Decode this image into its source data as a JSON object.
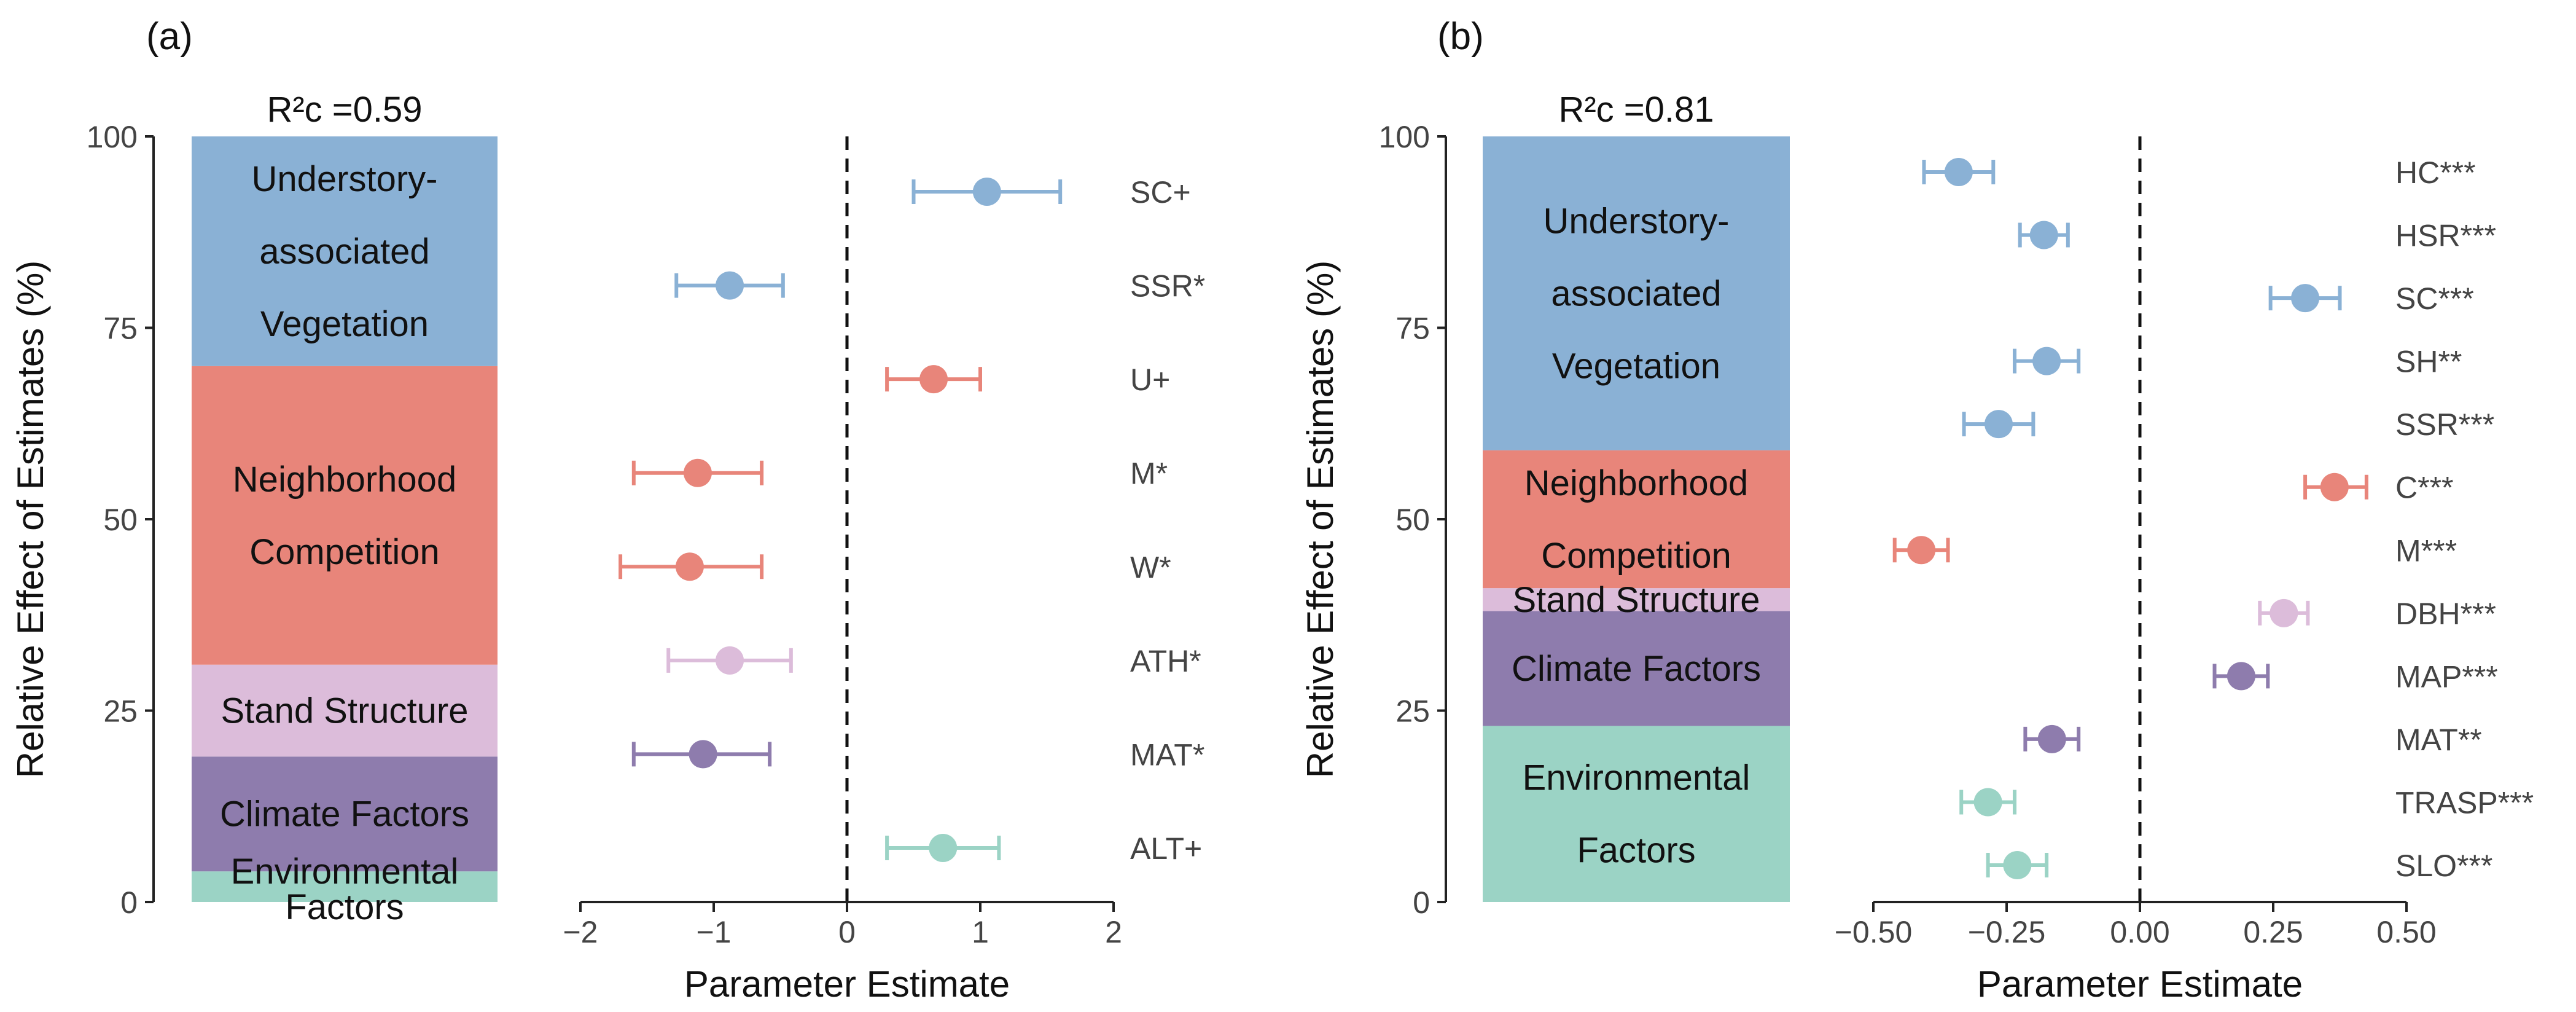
{
  "chart_data": [
    {
      "type": "stacked-bar + forest",
      "panel_label": "(a)",
      "r2_label": "R²c =0.59",
      "bar": {
        "ylabel": "Relative Effect of Estimates (%)",
        "ylim": [
          0,
          100
        ],
        "yticks": [
          "0",
          "25",
          "50",
          "75",
          "100"
        ],
        "segments": [
          {
            "name": "Environmental Factors",
            "lines": [
              "Environmental",
              "Factors"
            ],
            "start": 0,
            "end": 4,
            "color": "#9bd3c5"
          },
          {
            "name": "Climate Factors",
            "lines": [
              "Climate Factors"
            ],
            "start": 4,
            "end": 19,
            "color": "#8e7cad"
          },
          {
            "name": "Stand Structure",
            "lines": [
              "Stand Structure"
            ],
            "start": 19,
            "end": 31,
            "color": "#dcbcda"
          },
          {
            "name": "Neighborhood Competition",
            "lines": [
              "Neighborhood",
              "Competition"
            ],
            "start": 31,
            "end": 70,
            "color": "#e8857a"
          },
          {
            "name": "Understory-associated Vegetation",
            "lines": [
              "Understory-",
              "associated",
              "Vegetation"
            ],
            "start": 70,
            "end": 100,
            "color": "#8ab1d5"
          }
        ]
      },
      "forest": {
        "xlabel": "Parameter Estimate",
        "xlim": [
          -2,
          2
        ],
        "xticks": [
          -2,
          -1,
          0,
          1,
          2
        ],
        "xtick_labels": [
          "−2",
          "−1",
          "0",
          "1",
          "2"
        ],
        "points": [
          {
            "label": "SC+",
            "estimate": 1.05,
            "lower": 0.5,
            "upper": 1.6,
            "color": "#8ab1d5"
          },
          {
            "label": "SSR*",
            "estimate": -0.88,
            "lower": -1.28,
            "upper": -0.48,
            "color": "#8ab1d5"
          },
          {
            "label": "U+",
            "estimate": 0.65,
            "lower": 0.3,
            "upper": 1.0,
            "color": "#e8857a"
          },
          {
            "label": "M*",
            "estimate": -1.12,
            "lower": -1.6,
            "upper": -0.64,
            "color": "#e8857a"
          },
          {
            "label": "W*",
            "estimate": -1.18,
            "lower": -1.7,
            "upper": -0.64,
            "color": "#e8857a"
          },
          {
            "label": "ATH*",
            "estimate": -0.88,
            "lower": -1.34,
            "upper": -0.42,
            "color": "#dcbcda"
          },
          {
            "label": "MAT*",
            "estimate": -1.08,
            "lower": -1.6,
            "upper": -0.58,
            "color": "#8e7cad"
          },
          {
            "label": "ALT+",
            "estimate": 0.72,
            "lower": 0.3,
            "upper": 1.14,
            "color": "#9bd3c5"
          }
        ]
      }
    },
    {
      "type": "stacked-bar + forest",
      "panel_label": "(b)",
      "r2_label": "R²c =0.81",
      "bar": {
        "ylabel": "Relative Effect of Estimates (%)",
        "ylim": [
          0,
          100
        ],
        "yticks": [
          "0",
          "25",
          "50",
          "75",
          "100"
        ],
        "segments": [
          {
            "name": "Environmental Factors",
            "lines": [
              "Environmental",
              "Factors"
            ],
            "start": 0,
            "end": 23,
            "color": "#9bd3c5"
          },
          {
            "name": "Climate Factors",
            "lines": [
              "Climate Factors"
            ],
            "start": 23,
            "end": 38,
            "color": "#8e7cad"
          },
          {
            "name": "Stand Structure",
            "lines": [
              "Stand Structure"
            ],
            "start": 38,
            "end": 41,
            "color": "#dcbcda"
          },
          {
            "name": "Neighborhood Competition",
            "lines": [
              "Neighborhood",
              "Competition"
            ],
            "start": 41,
            "end": 59,
            "color": "#e8857a"
          },
          {
            "name": "Understory-associated Vegetation",
            "lines": [
              "Understory-",
              "associated",
              "Vegetation"
            ],
            "start": 59,
            "end": 100,
            "color": "#8ab1d5"
          }
        ]
      },
      "forest": {
        "xlabel": "Parameter Estimate",
        "xlim": [
          -0.5,
          0.5
        ],
        "xticks": [
          -0.5,
          -0.25,
          0,
          0.25,
          0.5
        ],
        "xtick_labels": [
          "−0.50",
          "−0.25",
          "0.00",
          "0.25",
          "0.50"
        ],
        "points": [
          {
            "label": "HC***",
            "estimate": -0.34,
            "lower": -0.405,
            "upper": -0.275,
            "color": "#8ab1d5"
          },
          {
            "label": "HSR***",
            "estimate": -0.18,
            "lower": -0.225,
            "upper": -0.135,
            "color": "#8ab1d5"
          },
          {
            "label": "SC***",
            "estimate": 0.31,
            "lower": 0.245,
            "upper": 0.375,
            "color": "#8ab1d5"
          },
          {
            "label": "SH**",
            "estimate": -0.175,
            "lower": -0.235,
            "upper": -0.115,
            "color": "#8ab1d5"
          },
          {
            "label": "SSR***",
            "estimate": -0.265,
            "lower": -0.33,
            "upper": -0.2,
            "color": "#8ab1d5"
          },
          {
            "label": "C***",
            "estimate": 0.365,
            "lower": 0.31,
            "upper": 0.425,
            "color": "#e8857a"
          },
          {
            "label": "M***",
            "estimate": -0.41,
            "lower": -0.46,
            "upper": -0.36,
            "color": "#e8857a"
          },
          {
            "label": "DBH***",
            "estimate": 0.27,
            "lower": 0.225,
            "upper": 0.315,
            "color": "#dcbcda"
          },
          {
            "label": "MAP***",
            "estimate": 0.19,
            "lower": 0.14,
            "upper": 0.24,
            "color": "#8e7cad"
          },
          {
            "label": "MAT**",
            "estimate": -0.165,
            "lower": -0.215,
            "upper": -0.115,
            "color": "#8e7cad"
          },
          {
            "label": "TRASP***",
            "estimate": -0.285,
            "lower": -0.335,
            "upper": -0.235,
            "color": "#9bd3c5"
          },
          {
            "label": "SLO***",
            "estimate": -0.23,
            "lower": -0.285,
            "upper": -0.175,
            "color": "#9bd3c5"
          }
        ]
      }
    }
  ]
}
